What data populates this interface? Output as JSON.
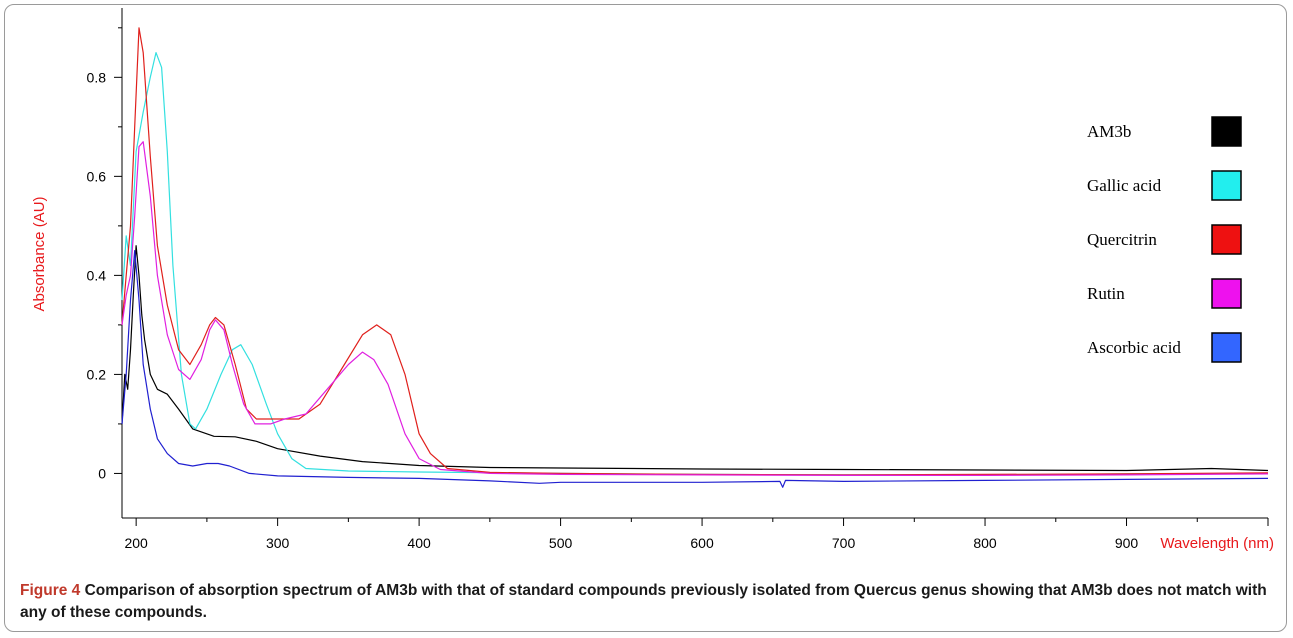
{
  "chart_data": {
    "type": "line",
    "title": "",
    "xlabel": "Wavelength (nm)",
    "ylabel": "Absorbance (AU)",
    "xlim": [
      190,
      1000
    ],
    "ylim": [
      -0.09,
      0.94
    ],
    "x_ticks": [
      200,
      300,
      400,
      500,
      600,
      700,
      800,
      900
    ],
    "y_ticks": [
      0,
      0.2,
      0.4,
      0.6,
      0.8
    ],
    "y_tick_labels": [
      "0",
      "0.2",
      "0.4",
      "0.6",
      "0.8"
    ],
    "legend_position": "right",
    "series": [
      {
        "name": "AM3b",
        "color": "#000000",
        "points": [
          [
            190,
            0.1
          ],
          [
            192,
            0.2
          ],
          [
            194,
            0.17
          ],
          [
            196,
            0.25
          ],
          [
            198,
            0.36
          ],
          [
            200,
            0.46
          ],
          [
            202,
            0.4
          ],
          [
            204,
            0.32
          ],
          [
            206,
            0.27
          ],
          [
            210,
            0.2
          ],
          [
            215,
            0.17
          ],
          [
            222,
            0.16
          ],
          [
            230,
            0.13
          ],
          [
            240,
            0.09
          ],
          [
            255,
            0.075
          ],
          [
            270,
            0.074
          ],
          [
            285,
            0.065
          ],
          [
            300,
            0.05
          ],
          [
            330,
            0.035
          ],
          [
            360,
            0.024
          ],
          [
            400,
            0.016
          ],
          [
            450,
            0.012
          ],
          [
            500,
            0.011
          ],
          [
            600,
            0.009
          ],
          [
            700,
            0.008
          ],
          [
            800,
            0.007
          ],
          [
            900,
            0.006
          ],
          [
            960,
            0.01
          ],
          [
            1000,
            0.006
          ]
        ]
      },
      {
        "name": "Gallic acid",
        "color": "#33e0e0",
        "points": [
          [
            190,
            0.35
          ],
          [
            193,
            0.48
          ],
          [
            196,
            0.42
          ],
          [
            200,
            0.65
          ],
          [
            205,
            0.73
          ],
          [
            210,
            0.8
          ],
          [
            214,
            0.85
          ],
          [
            218,
            0.82
          ],
          [
            222,
            0.65
          ],
          [
            226,
            0.42
          ],
          [
            232,
            0.2
          ],
          [
            238,
            0.1
          ],
          [
            242,
            0.09
          ],
          [
            250,
            0.13
          ],
          [
            260,
            0.2
          ],
          [
            268,
            0.25
          ],
          [
            274,
            0.26
          ],
          [
            282,
            0.22
          ],
          [
            292,
            0.14
          ],
          [
            300,
            0.08
          ],
          [
            310,
            0.03
          ],
          [
            320,
            0.01
          ],
          [
            350,
            0.005
          ],
          [
            400,
            0.003
          ],
          [
            500,
            0.0
          ],
          [
            600,
            -0.002
          ],
          [
            700,
            -0.003
          ],
          [
            800,
            -0.003
          ],
          [
            900,
            -0.001
          ],
          [
            1000,
            0.0
          ]
        ]
      },
      {
        "name": "Quercitrin",
        "color": "#e0201c",
        "points": [
          [
            190,
            0.3
          ],
          [
            193,
            0.4
          ],
          [
            196,
            0.5
          ],
          [
            199,
            0.7
          ],
          [
            202,
            0.9
          ],
          [
            205,
            0.85
          ],
          [
            210,
            0.64
          ],
          [
            215,
            0.46
          ],
          [
            222,
            0.34
          ],
          [
            230,
            0.25
          ],
          [
            238,
            0.22
          ],
          [
            246,
            0.26
          ],
          [
            252,
            0.3
          ],
          [
            256,
            0.315
          ],
          [
            262,
            0.3
          ],
          [
            270,
            0.22
          ],
          [
            278,
            0.13
          ],
          [
            285,
            0.11
          ],
          [
            300,
            0.11
          ],
          [
            315,
            0.11
          ],
          [
            330,
            0.14
          ],
          [
            345,
            0.21
          ],
          [
            360,
            0.28
          ],
          [
            370,
            0.3
          ],
          [
            380,
            0.28
          ],
          [
            390,
            0.2
          ],
          [
            400,
            0.08
          ],
          [
            408,
            0.04
          ],
          [
            420,
            0.01
          ],
          [
            450,
            0.002
          ],
          [
            500,
            0.0
          ],
          [
            600,
            -0.002
          ],
          [
            700,
            -0.003
          ],
          [
            800,
            -0.002
          ],
          [
            900,
            -0.001
          ],
          [
            1000,
            0.001
          ]
        ]
      },
      {
        "name": "Rutin",
        "color": "#e020e0",
        "points": [
          [
            190,
            0.3
          ],
          [
            193,
            0.36
          ],
          [
            196,
            0.4
          ],
          [
            199,
            0.52
          ],
          [
            202,
            0.66
          ],
          [
            205,
            0.67
          ],
          [
            210,
            0.56
          ],
          [
            215,
            0.4
          ],
          [
            222,
            0.28
          ],
          [
            230,
            0.21
          ],
          [
            238,
            0.19
          ],
          [
            246,
            0.23
          ],
          [
            252,
            0.29
          ],
          [
            256,
            0.31
          ],
          [
            262,
            0.29
          ],
          [
            268,
            0.22
          ],
          [
            276,
            0.14
          ],
          [
            284,
            0.1
          ],
          [
            295,
            0.1
          ],
          [
            305,
            0.11
          ],
          [
            320,
            0.12
          ],
          [
            335,
            0.17
          ],
          [
            350,
            0.22
          ],
          [
            360,
            0.245
          ],
          [
            368,
            0.23
          ],
          [
            378,
            0.18
          ],
          [
            390,
            0.08
          ],
          [
            400,
            0.03
          ],
          [
            415,
            0.008
          ],
          [
            450,
            0.0
          ],
          [
            500,
            -0.002
          ],
          [
            600,
            -0.003
          ],
          [
            700,
            -0.004
          ],
          [
            800,
            -0.004
          ],
          [
            900,
            -0.003
          ],
          [
            1000,
            -0.001
          ]
        ]
      },
      {
        "name": "Ascorbic acid",
        "color": "#2020d0",
        "points": [
          [
            190,
            0.1
          ],
          [
            193,
            0.2
          ],
          [
            196,
            0.35
          ],
          [
            199,
            0.45
          ],
          [
            202,
            0.35
          ],
          [
            205,
            0.22
          ],
          [
            210,
            0.13
          ],
          [
            215,
            0.07
          ],
          [
            222,
            0.04
          ],
          [
            230,
            0.02
          ],
          [
            240,
            0.015
          ],
          [
            250,
            0.02
          ],
          [
            258,
            0.02
          ],
          [
            266,
            0.015
          ],
          [
            280,
            0.0
          ],
          [
            300,
            -0.005
          ],
          [
            350,
            -0.008
          ],
          [
            400,
            -0.01
          ],
          [
            450,
            -0.015
          ],
          [
            485,
            -0.02
          ],
          [
            500,
            -0.018
          ],
          [
            550,
            -0.018
          ],
          [
            600,
            -0.018
          ],
          [
            655,
            -0.016
          ],
          [
            657,
            -0.028
          ],
          [
            659,
            -0.014
          ],
          [
            700,
            -0.016
          ],
          [
            800,
            -0.014
          ],
          [
            900,
            -0.012
          ],
          [
            1000,
            -0.01
          ]
        ]
      }
    ]
  },
  "legend": {
    "items": [
      {
        "label": "AM3b",
        "swatch": "#000000"
      },
      {
        "label": "Gallic acid",
        "swatch": "#22eeee"
      },
      {
        "label": "Quercitrin",
        "swatch": "#ee1111"
      },
      {
        "label": "Rutin",
        "swatch": "#ee11ee"
      },
      {
        "label": "Ascorbic acid",
        "swatch": "#3366ff"
      }
    ]
  },
  "caption": {
    "label": "Figure 4",
    "text": "Comparison of absorption spectrum of AM3b with that of standard compounds previously isolated from Quercus genus showing that AM3b does not match with any of these compounds."
  }
}
